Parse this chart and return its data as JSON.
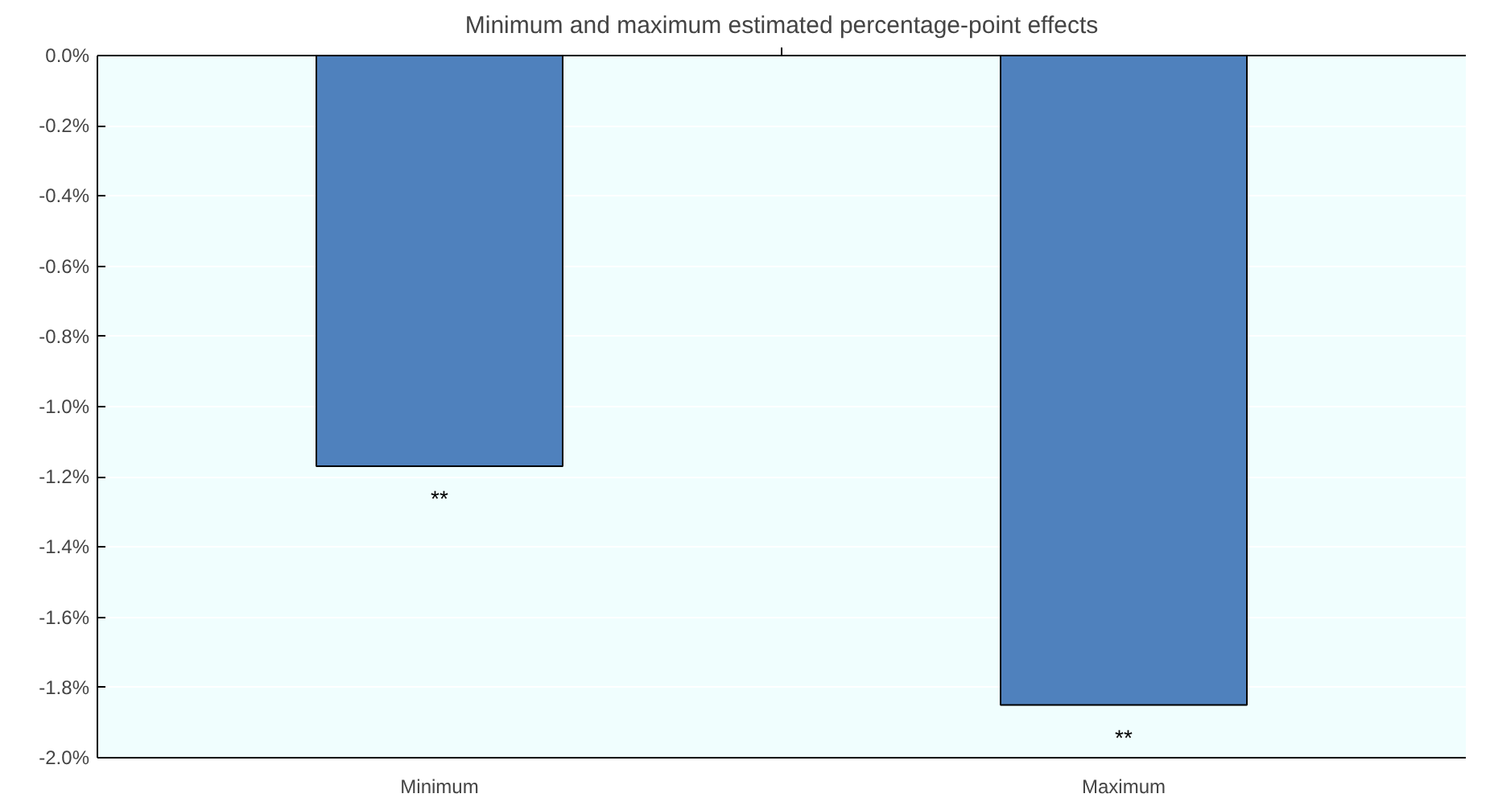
{
  "chart_data": {
    "type": "bar",
    "title": "Minimum and maximum estimated percentage-point effects",
    "categories": [
      "Minimum",
      "Maximum"
    ],
    "values": [
      -1.17,
      -1.85
    ],
    "color": "#4f81bd",
    "ylim": [
      -2.0,
      0.0
    ],
    "yticks": [
      {
        "value": 0.0,
        "label": "0.0%"
      },
      {
        "value": -0.2,
        "label": "-0.2%"
      },
      {
        "value": -0.4,
        "label": "-0.4%"
      },
      {
        "value": -0.6,
        "label": "-0.6%"
      },
      {
        "value": -0.8,
        "label": "-0.8%"
      },
      {
        "value": -1.0,
        "label": "-1.0%"
      },
      {
        "value": -1.2,
        "label": "-1.2%"
      },
      {
        "value": -1.4,
        "label": "-1.4%"
      },
      {
        "value": -1.6,
        "label": "-1.6%"
      },
      {
        "value": -1.8,
        "label": "-1.8%"
      },
      {
        "value": -2.0,
        "label": "-2.0%"
      }
    ],
    "annotations": [
      "**",
      "**"
    ],
    "grid": "y"
  }
}
